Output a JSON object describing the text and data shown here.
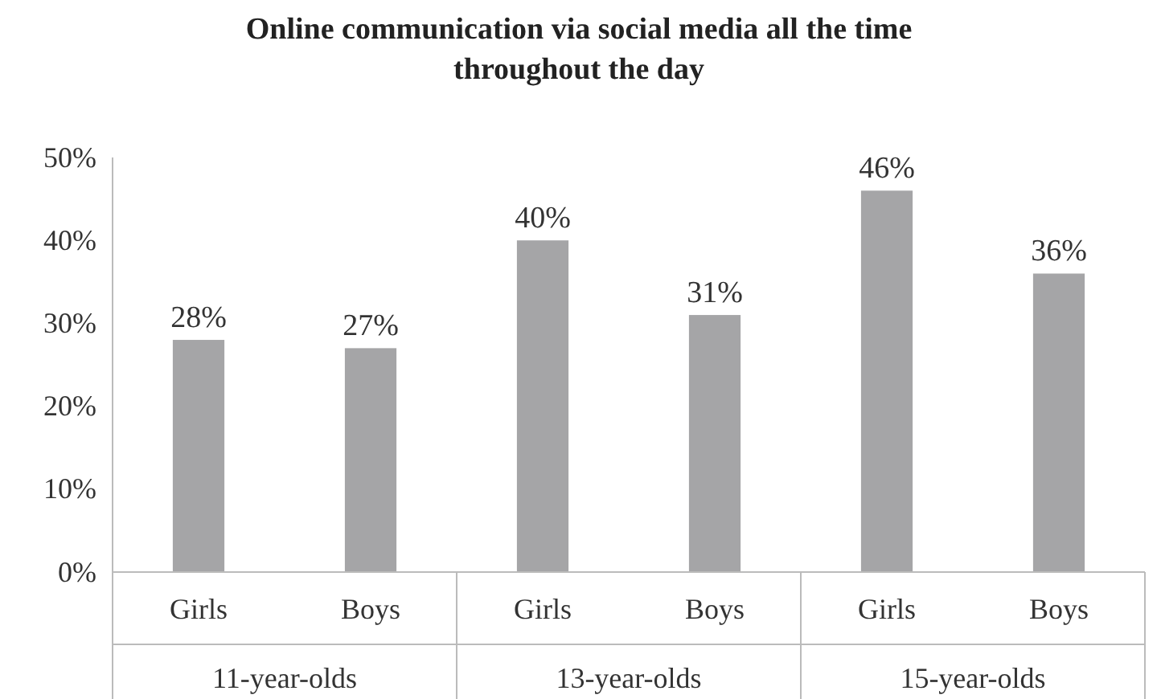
{
  "chart_data": {
    "type": "bar",
    "title": "Online communication via social media all the time throughout the day",
    "categories": [
      "Girls",
      "Boys",
      "Girls",
      "Boys",
      "Girls",
      "Boys"
    ],
    "values": [
      28,
      27,
      40,
      31,
      46,
      36
    ],
    "value_labels": [
      "28%",
      "27%",
      "40%",
      "31%",
      "46%",
      "36%"
    ],
    "color": "#a5a5a7",
    "ylim": [
      0,
      50
    ],
    "yticks": [
      {
        "value": 0,
        "label": "0%"
      },
      {
        "value": 10,
        "label": "10%"
      },
      {
        "value": 20,
        "label": "20%"
      },
      {
        "value": 30,
        "label": "30%"
      },
      {
        "value": 40,
        "label": "40%"
      },
      {
        "value": 50,
        "label": "50%"
      }
    ],
    "annotations": [
      "11-year-olds",
      "13-year-olds",
      "15-year-olds"
    ],
    "grid": false
  }
}
